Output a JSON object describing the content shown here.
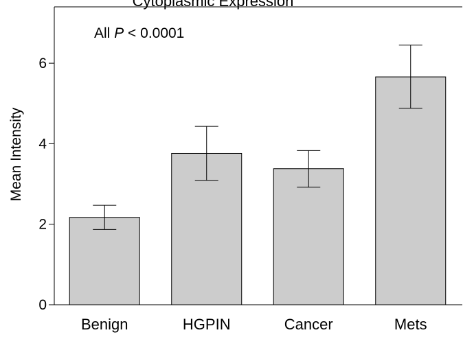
{
  "chart_data": {
    "type": "bar",
    "title": "Cytoplasmic Expression",
    "xlabel": "",
    "ylabel": "Mean Intensity",
    "categories": [
      "Benign",
      "HGPIN",
      "Cancer",
      "Mets"
    ],
    "values": [
      2.17,
      3.76,
      3.38,
      5.66
    ],
    "error_upper": [
      2.47,
      4.43,
      3.83,
      6.45
    ],
    "error_lower": [
      1.87,
      3.09,
      2.92,
      4.88
    ],
    "ylim": [
      0,
      7.4
    ],
    "yticks": [
      0,
      2,
      4,
      6
    ],
    "annotation": {
      "prefix": "All ",
      "italic": "P",
      "suffix": " < 0.0001"
    },
    "colors": {
      "bar_fill": "#cccccc",
      "bar_stroke": "#000000"
    },
    "grid": false,
    "legend": "none"
  }
}
